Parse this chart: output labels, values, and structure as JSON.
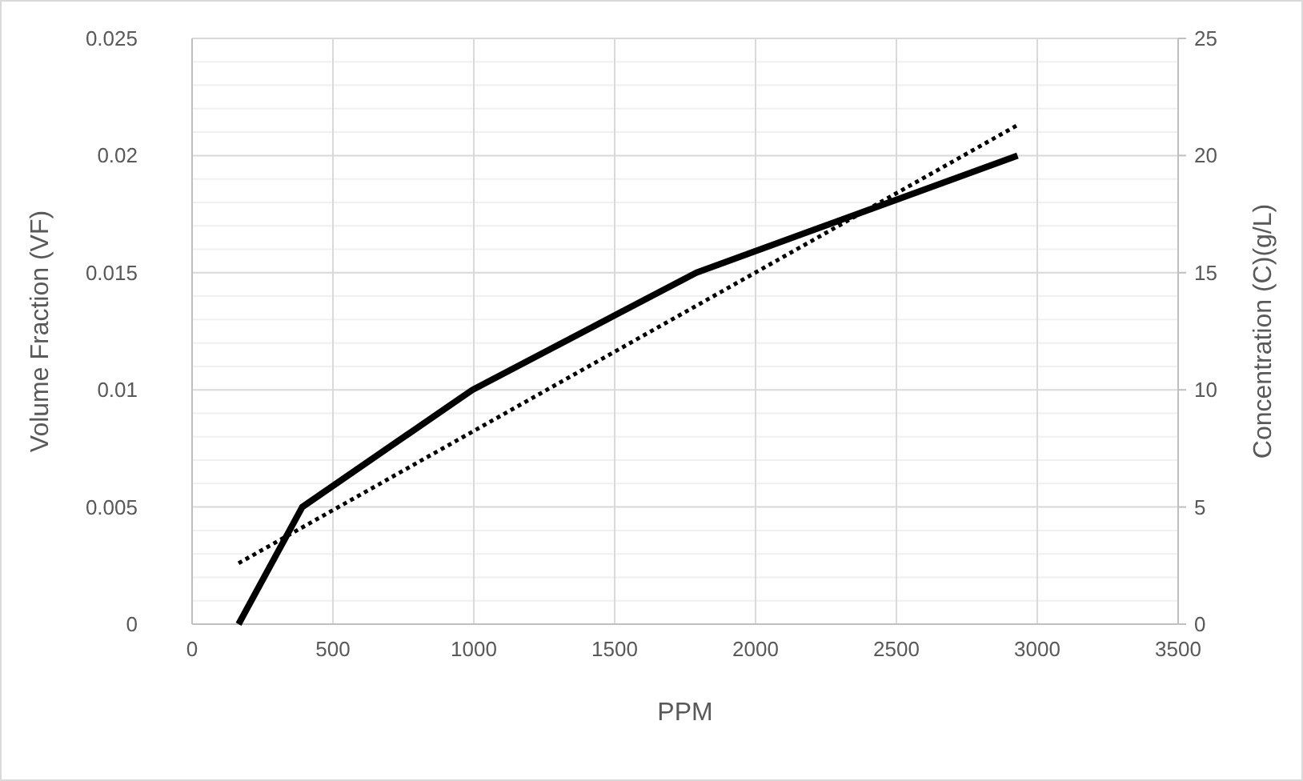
{
  "chart_data": {
    "type": "line",
    "xlabel": "PPM",
    "ylabel": "Volume Fraction (VF)",
    "y2label": "Concentration (C)(g/L)",
    "xlim": [
      0,
      3500
    ],
    "xticks": [
      0,
      500,
      1000,
      1500,
      2000,
      2500,
      3000,
      3500
    ],
    "ylim": [
      0,
      0.025
    ],
    "yticks": [
      0,
      {
        "value": 0.001,
        "label": null
      },
      {
        "value": 0.002,
        "label": null
      },
      {
        "value": 0.003,
        "label": null
      },
      {
        "value": 0.004,
        "label": null
      },
      0.005,
      {
        "value": 0.006,
        "label": null
      },
      {
        "value": 0.007,
        "label": null
      },
      {
        "value": 0.008,
        "label": null
      },
      {
        "value": 0.009,
        "label": null
      },
      0.01,
      {
        "value": 0.011,
        "label": null
      },
      {
        "value": 0.012,
        "label": null
      },
      {
        "value": 0.013,
        "label": null
      },
      {
        "value": 0.014,
        "label": null
      },
      0.015,
      {
        "value": 0.016,
        "label": null
      },
      {
        "value": 0.017,
        "label": null
      },
      {
        "value": 0.018,
        "label": null
      },
      {
        "value": 0.019,
        "label": null
      },
      0.02,
      {
        "value": 0.021,
        "label": null
      },
      {
        "value": 0.022,
        "label": null
      },
      {
        "value": 0.023,
        "label": null
      },
      {
        "value": 0.024,
        "label": null
      },
      0.025
    ],
    "y2lim": [
      0,
      25
    ],
    "y2ticks": [
      0,
      5,
      10,
      15,
      20,
      25
    ],
    "grid": true,
    "marker": "none",
    "series": [
      {
        "color": "#000000",
        "line_style": "solid",
        "x": [
          165,
          391,
          995,
          1790,
          2930
        ],
        "values": [
          0,
          0.005,
          0.01,
          0.015,
          0.02
        ]
      },
      {
        "color": "#000000",
        "line_style": "dotted",
        "x": [
          165,
          2930
        ],
        "values": [
          0.0026,
          0.0213
        ]
      }
    ]
  }
}
